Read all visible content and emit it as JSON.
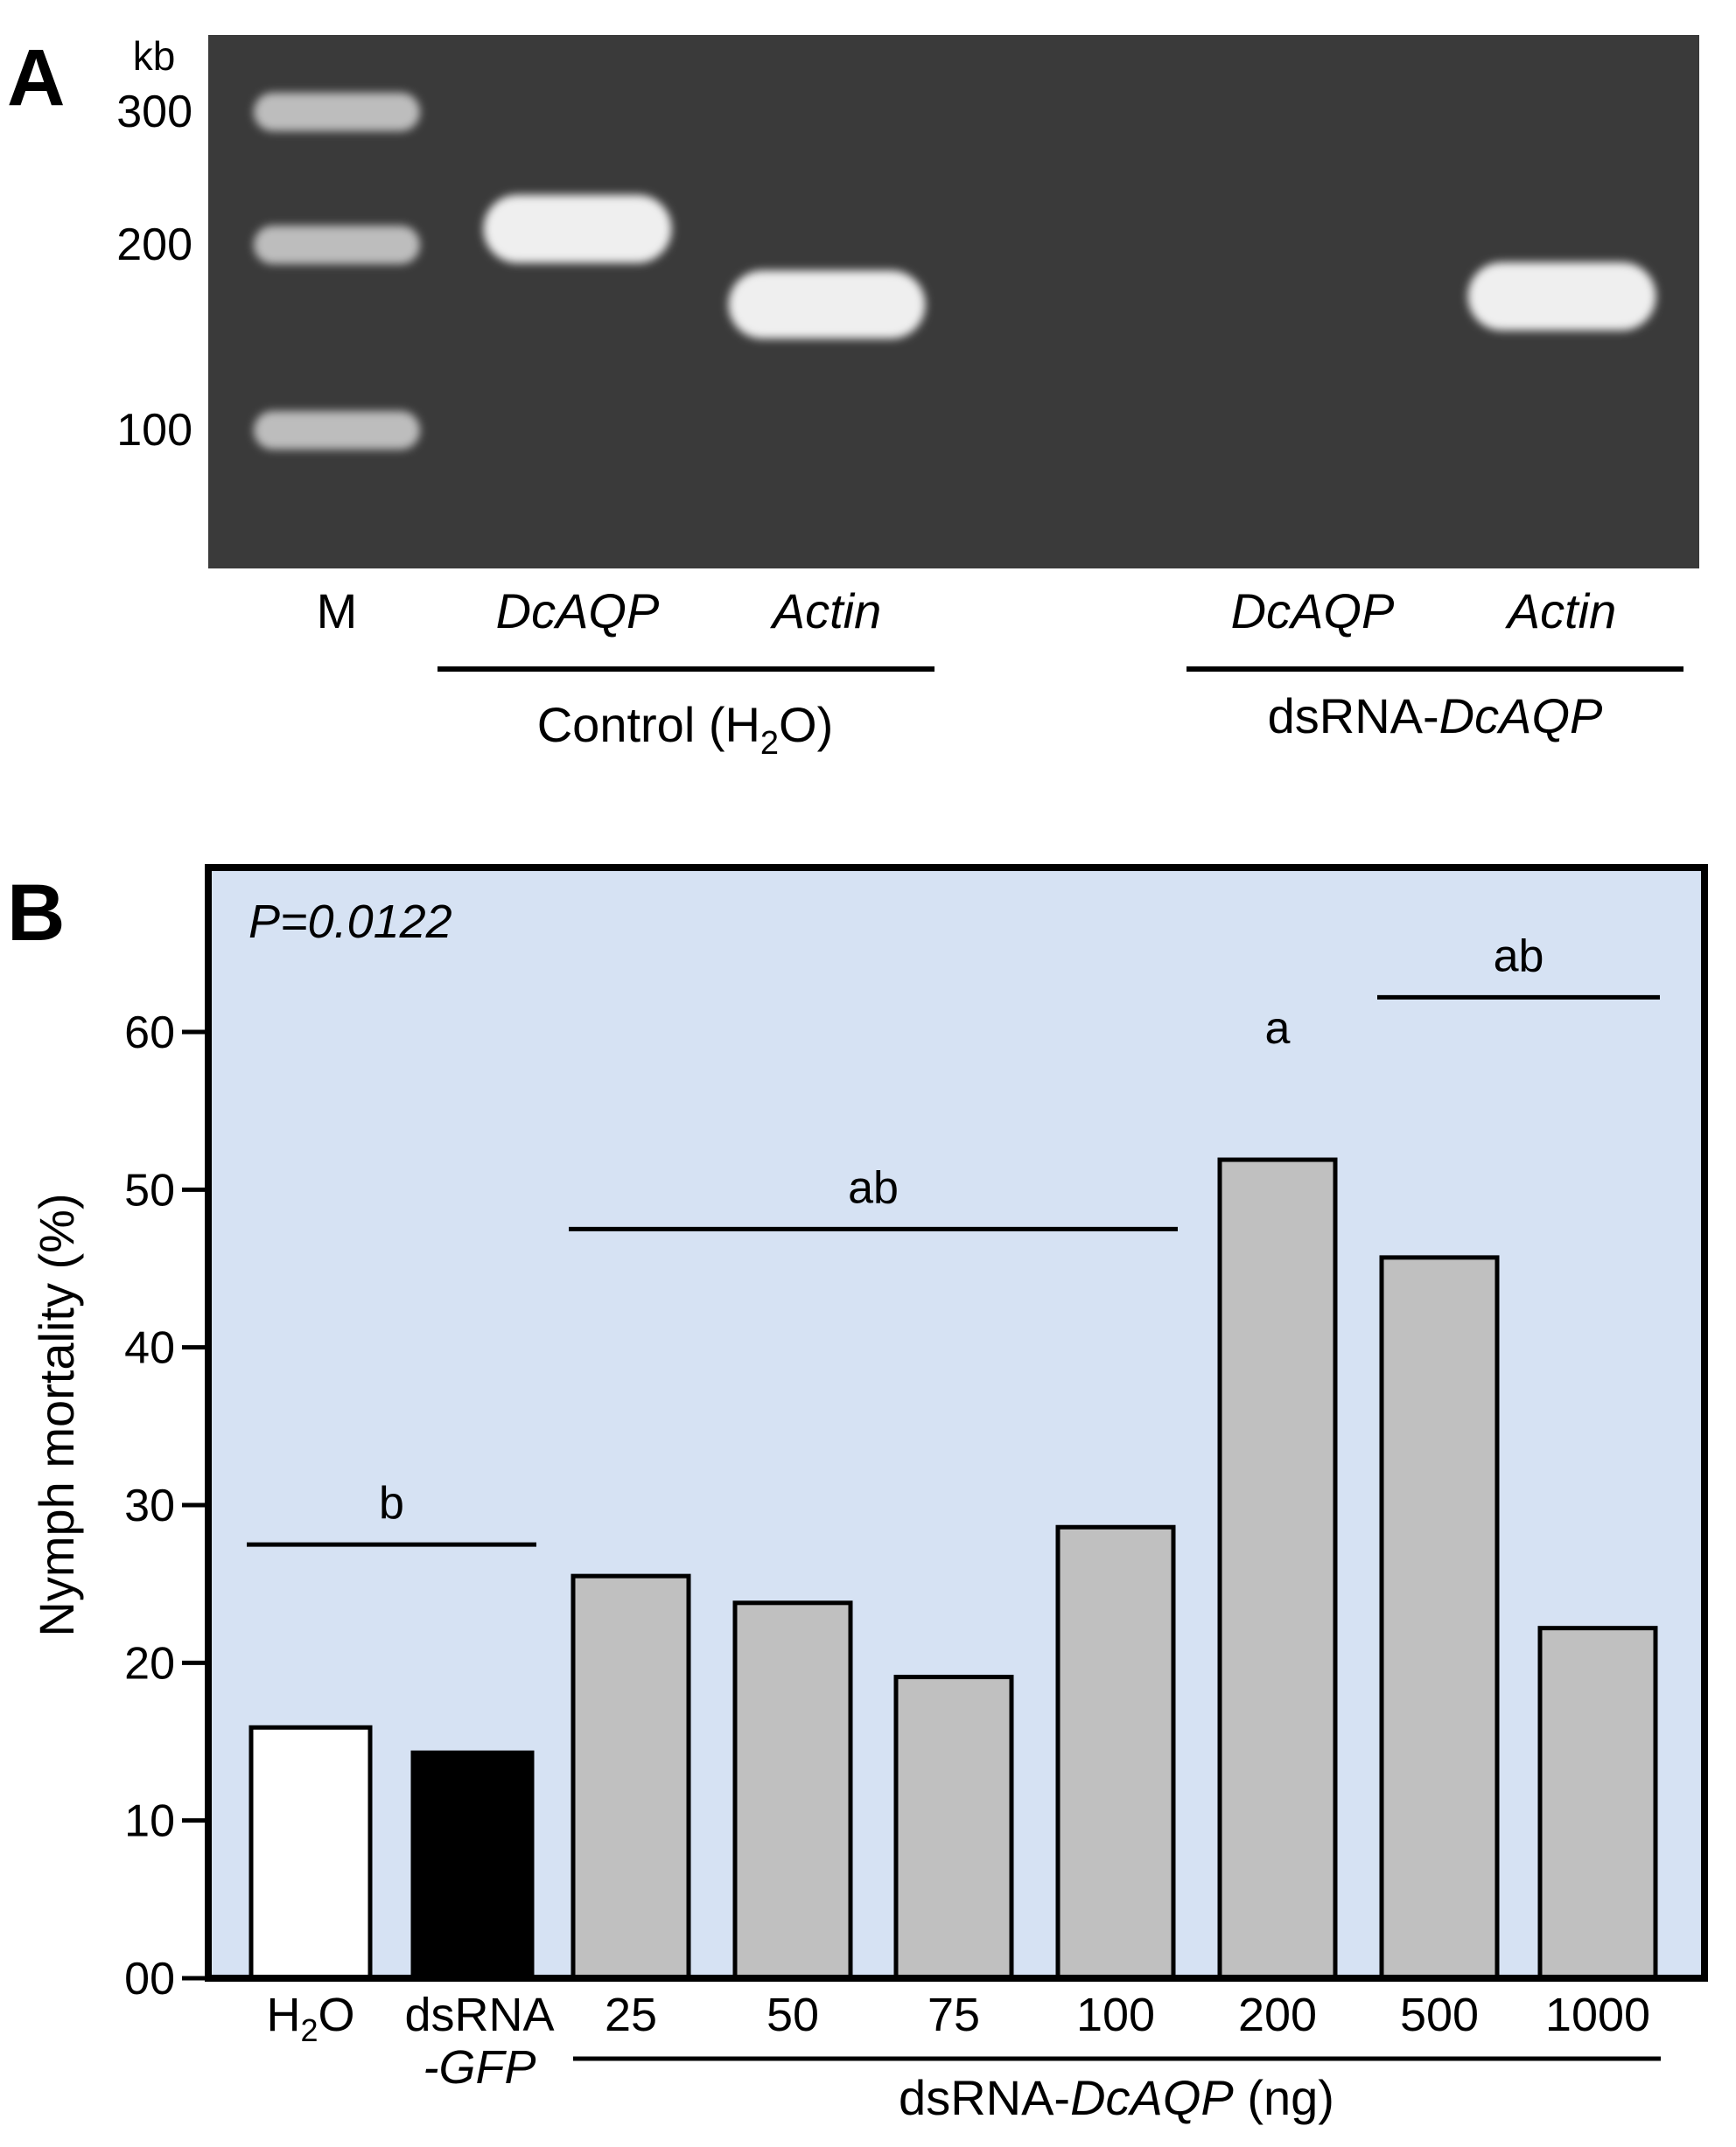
{
  "panel_a": {
    "label": "A",
    "unit": "kb",
    "ladder": [
      {
        "text": "300",
        "value": 300
      },
      {
        "text": "200",
        "value": 200
      },
      {
        "text": "100",
        "value": 100
      }
    ],
    "lanes": [
      {
        "text": "M",
        "italic": false,
        "bands": [
          300,
          200,
          100
        ],
        "kind": "ladder"
      },
      {
        "text": "DcAQP",
        "italic": true,
        "bands": [
          210
        ],
        "kind": "sample"
      },
      {
        "text": "Actin",
        "italic": true,
        "bands": [
          160
        ],
        "kind": "sample"
      },
      {
        "text": "",
        "italic": false,
        "bands": [],
        "kind": "empty"
      },
      {
        "text": "DcAQP",
        "italic": true,
        "bands": [],
        "kind": "sample"
      },
      {
        "text": "Actin",
        "italic": true,
        "bands": [
          165
        ],
        "kind": "sample"
      }
    ],
    "groups": [
      {
        "pre": "Control (H",
        "sub": "2",
        "post": "O)"
      },
      {
        "plain": "dsRNA-",
        "italic": "DcAQP"
      }
    ],
    "colors": {
      "gel": "#3a3a3a",
      "band": "#efefef",
      "ladder_band": "#bdbdbd"
    }
  },
  "panel_b": {
    "label": "B",
    "annotation": "P=0.0122",
    "y_tick_labels": [
      "00",
      "10",
      "20",
      "30",
      "40",
      "50",
      "60"
    ],
    "x_group_label": {
      "plain": "dsRNA-",
      "italic": "DcAQP",
      "unit": " (ng)"
    },
    "colors": {
      "plot_bg": "#d6e2f3",
      "white_bar": "#ffffff",
      "black_bar": "#000000",
      "gray_bar": "#c0c0c0"
    }
  },
  "chart_data": {
    "type": "bar",
    "categories": [
      "H2O",
      "dsRNA-GFP",
      "25",
      "50",
      "75",
      "100",
      "200",
      "500",
      "1000"
    ],
    "values": [
      15.9,
      14.3,
      25.5,
      23.8,
      19.1,
      28.6,
      51.9,
      45.7,
      22.2
    ],
    "bar_fills": [
      "white",
      "black",
      "gray",
      "gray",
      "gray",
      "gray",
      "gray",
      "gray",
      "gray"
    ],
    "ylabel": "Nymph mortality (%)",
    "xlabel": "dsRNA-DcAQP (ng)",
    "ylim": [
      0,
      70
    ],
    "yticks": [
      0,
      10,
      20,
      30,
      40,
      50,
      60
    ],
    "grid": false,
    "significance": [
      {
        "letter": "b",
        "from": 0,
        "to": 1,
        "line": true,
        "y": 27.5
      },
      {
        "letter": "ab",
        "from": 2,
        "to": 5,
        "line": true,
        "y": 47.5
      },
      {
        "letter": "a",
        "from": 6,
        "to": 6,
        "line": false,
        "y": 61.5
      },
      {
        "letter": "ab",
        "from": 7,
        "to": 8,
        "line": true,
        "y": 62.2
      }
    ]
  }
}
